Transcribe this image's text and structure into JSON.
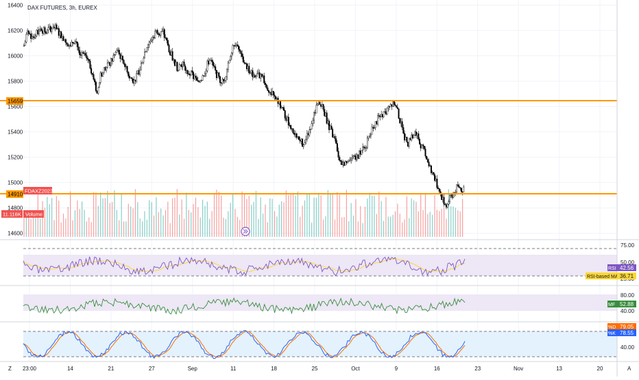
{
  "title": "DAX FUTURES, 3h, EUREX",
  "colors": {
    "up": "#26a69a",
    "down": "#ef5350",
    "candle": "#000000",
    "level": "#ff9800",
    "rsi": "#7e57c2",
    "rsi_ma": "#fdd835",
    "mfi": "#388e3c",
    "stoch_k": "#2962ff",
    "stoch_d": "#ff6d00",
    "rsi_band": "#ede7f6",
    "mfi_band": "#ede7f6",
    "stoch_band": "#e3f2fd"
  },
  "price_axis": {
    "ticks": [
      "16400",
      "16200",
      "16000",
      "15800",
      "15600",
      "15400",
      "15200",
      "15000",
      "14800",
      "14600"
    ]
  },
  "time_axis": {
    "ticks": [
      "23:00",
      "14",
      "21",
      "27",
      "Sep",
      "11",
      "18",
      "25",
      "Oct",
      "9",
      "16",
      "23",
      "Nov",
      "13",
      "20"
    ]
  },
  "badges": {
    "level_upper": "15659",
    "level_lower": "14910",
    "symbol": "FDAXZ2023",
    "volume_value": "11.116K",
    "volume_label": "Volume"
  },
  "rsi_panel": {
    "ticks": [
      "75.00",
      "50.00",
      "25.00"
    ],
    "rsi_label": "RSI",
    "rsi_value": "42.56",
    "ma_label": "RSI-based MA",
    "ma_value": "36.71"
  },
  "mfi_panel": {
    "ticks": [
      "80.00",
      "40.00"
    ],
    "label": "MF",
    "value": "52.88"
  },
  "stoch_panel": {
    "ticks": [
      "80.00",
      "40.00"
    ],
    "d_label": "%D",
    "d_value": "79.05",
    "k_label": "%K",
    "k_value": "78.55"
  },
  "corner_left": "Z",
  "corner_right": "A",
  "chart_data": {
    "type": "candlestick",
    "title": "DAX FUTURES, 3h, EUREX",
    "ylim": [
      14550,
      16440
    ],
    "horizontal_levels": [
      15659,
      14910
    ],
    "price_path": [
      [
        0,
        16080
      ],
      [
        3,
        16180
      ],
      [
        8,
        16150
      ],
      [
        14,
        16220
      ],
      [
        19,
        16180
      ],
      [
        25,
        16240
      ],
      [
        30,
        16180
      ],
      [
        36,
        16120
      ],
      [
        40,
        16080
      ],
      [
        44,
        16140
      ],
      [
        48,
        16010
      ],
      [
        55,
        15980
      ],
      [
        60,
        15830
      ],
      [
        63,
        15700
      ],
      [
        66,
        15850
      ],
      [
        70,
        15900
      ],
      [
        75,
        15950
      ],
      [
        80,
        16040
      ],
      [
        85,
        15970
      ],
      [
        90,
        15850
      ],
      [
        95,
        15800
      ],
      [
        100,
        15900
      ],
      [
        105,
        16060
      ],
      [
        110,
        16140
      ],
      [
        115,
        16200
      ],
      [
        120,
        16180
      ],
      [
        124,
        16080
      ],
      [
        128,
        15980
      ],
      [
        132,
        15910
      ],
      [
        136,
        15940
      ],
      [
        140,
        15880
      ],
      [
        145,
        15850
      ],
      [
        150,
        15780
      ],
      [
        155,
        15860
      ],
      [
        160,
        15980
      ],
      [
        164,
        15890
      ],
      [
        168,
        15820
      ],
      [
        172,
        15790
      ],
      [
        176,
        15940
      ],
      [
        180,
        16090
      ],
      [
        183,
        16110
      ],
      [
        186,
        16020
      ],
      [
        190,
        15950
      ],
      [
        195,
        15870
      ],
      [
        200,
        15840
      ],
      [
        205,
        15860
      ],
      [
        210,
        15740
      ],
      [
        215,
        15680
      ],
      [
        220,
        15620
      ],
      [
        225,
        15530
      ],
      [
        230,
        15440
      ],
      [
        235,
        15340
      ],
      [
        240,
        15310
      ],
      [
        245,
        15390
      ],
      [
        250,
        15540
      ],
      [
        254,
        15630
      ],
      [
        258,
        15580
      ],
      [
        263,
        15440
      ],
      [
        268,
        15330
      ],
      [
        272,
        15180
      ],
      [
        276,
        15130
      ],
      [
        280,
        15200
      ],
      [
        285,
        15180
      ],
      [
        290,
        15240
      ],
      [
        295,
        15300
      ],
      [
        300,
        15420
      ],
      [
        305,
        15500
      ],
      [
        310,
        15540
      ],
      [
        315,
        15610
      ],
      [
        318,
        15640
      ],
      [
        322,
        15560
      ],
      [
        326,
        15420
      ],
      [
        330,
        15300
      ],
      [
        334,
        15350
      ],
      [
        338,
        15400
      ],
      [
        342,
        15300
      ],
      [
        346,
        15220
      ],
      [
        350,
        15120
      ],
      [
        354,
        15020
      ],
      [
        358,
        14940
      ],
      [
        361,
        14860
      ],
      [
        364,
        14820
      ],
      [
        368,
        14890
      ],
      [
        372,
        14950
      ],
      [
        375,
        14960
      ],
      [
        380,
        14930
      ]
    ],
    "volume_level_k": 11.116
  }
}
